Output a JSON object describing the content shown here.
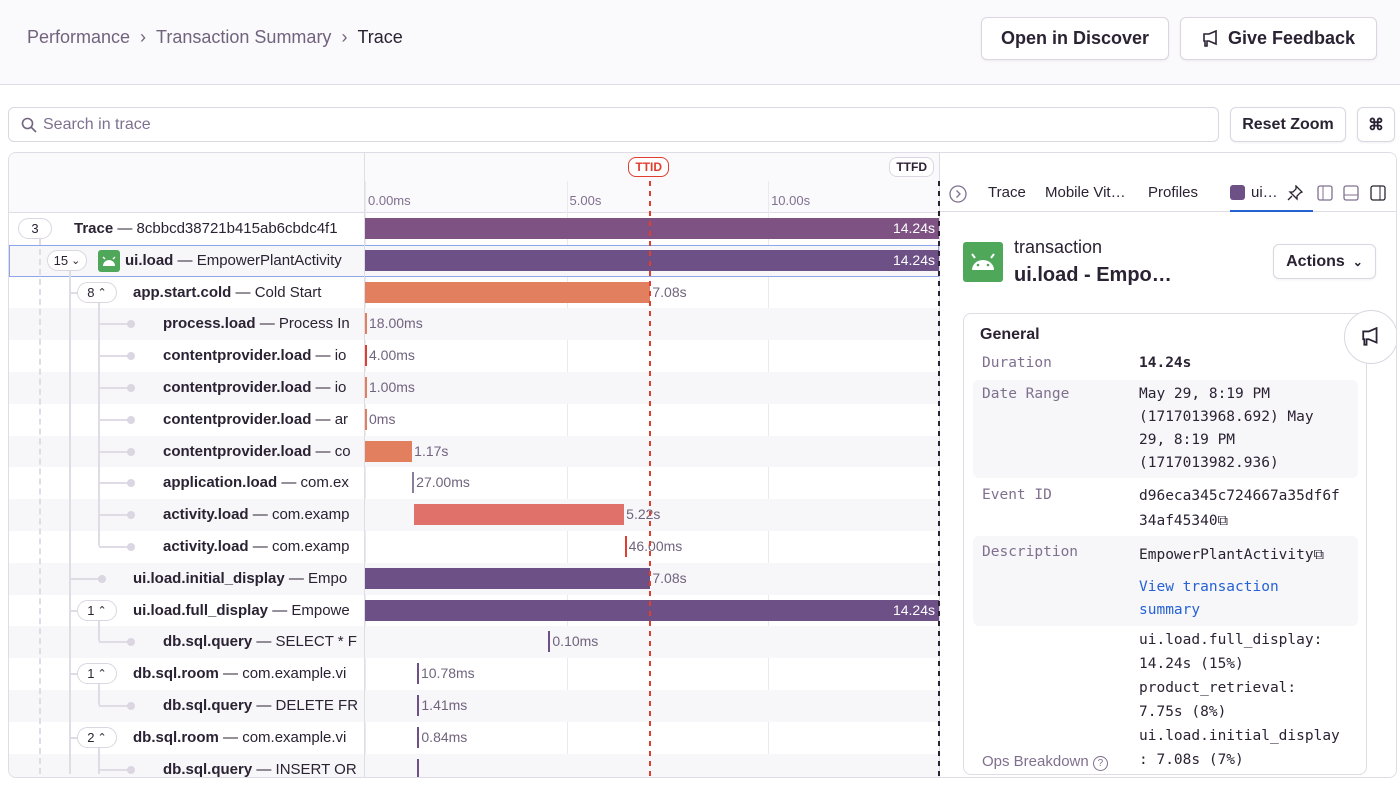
{
  "breadcrumbs": [
    "Performance",
    "Transaction Summary",
    "Trace"
  ],
  "header": {
    "open_discover": "Open in Discover",
    "give_feedback": "Give Feedback"
  },
  "search": {
    "placeholder": "Search in trace",
    "value": ""
  },
  "toolbar": {
    "reset_zoom": "Reset Zoom",
    "shortcut": "⌘"
  },
  "timeline": {
    "ticks": [
      "0.00ms",
      "5.00s",
      "10.00s"
    ],
    "tick_values_s": [
      0,
      5,
      10
    ],
    "total_s": 14.24,
    "markers": [
      {
        "label": "TTID",
        "at_s": 7.08,
        "color": "#e03e2f"
      },
      {
        "label": "TTFD",
        "at_s": 14.24,
        "color": "#2b2233"
      }
    ]
  },
  "colors": {
    "trace": "#7e5283",
    "ui_load": "#6c5086",
    "orange": "#e27f5f",
    "red_orange": "#e0706a",
    "purple_line": "#6c5086",
    "link": "#2562d4",
    "android": "#4fa85a"
  },
  "rows": [
    {
      "depth": 0,
      "badge": "3",
      "op": "Trace",
      "desc": "8cbbcd38721b415ab6cbdc4f1",
      "start": 0,
      "dur": 14.24,
      "duration": "14.24s",
      "color": "#7e5283"
    },
    {
      "depth": 1,
      "badge": "15",
      "chev": "down",
      "icon": "android",
      "op": "ui.load",
      "desc": "EmpowerPlantActivity",
      "start": 0,
      "dur": 14.24,
      "duration": "14.24s",
      "color": "#6c5086",
      "selected": true
    },
    {
      "depth": 2,
      "badge": "8",
      "chev": "up",
      "op": "app.start.cold",
      "desc": "Cold Start",
      "start": 0,
      "dur": 7.08,
      "duration": "7.08s",
      "color": "#e27f5f"
    },
    {
      "depth": 3,
      "op": "process.load",
      "desc": "Process In",
      "start": 0,
      "dur": 0.018,
      "duration": "18.00ms",
      "color": "#e27f5f"
    },
    {
      "depth": 3,
      "op": "contentprovider.load",
      "desc": "io",
      "start": 0,
      "dur": 0.004,
      "duration": "4.00ms",
      "color": "#e03e2f"
    },
    {
      "depth": 3,
      "op": "contentprovider.load",
      "desc": "io",
      "start": 0,
      "dur": 0.001,
      "duration": "1.00ms",
      "color": "#e27f5f"
    },
    {
      "depth": 3,
      "op": "contentprovider.load",
      "desc": "ar",
      "start": 0,
      "dur": 0,
      "duration": "0ms",
      "color": "#e27f5f"
    },
    {
      "depth": 3,
      "op": "contentprovider.load",
      "desc": "co",
      "start": 0,
      "dur": 1.17,
      "duration": "1.17s",
      "color": "#e27f5f"
    },
    {
      "depth": 3,
      "op": "application.load",
      "desc": "com.ex",
      "start": 1.17,
      "dur": 0.027,
      "duration": "27.00ms",
      "color": "#8c7d9a"
    },
    {
      "depth": 3,
      "op": "activity.load",
      "desc": "com.examp",
      "start": 1.21,
      "dur": 5.22,
      "duration": "5.22s",
      "color": "#e0706a"
    },
    {
      "depth": 3,
      "op": "activity.load",
      "desc": "com.examp",
      "start": 6.44,
      "dur": 0.046,
      "duration": "46.00ms",
      "color": "#e03e2f",
      "last": true
    },
    {
      "depth": 2,
      "op": "ui.load.initial_display",
      "desc": "Empo",
      "start": 0,
      "dur": 7.08,
      "duration": "7.08s",
      "color": "#6c5086"
    },
    {
      "depth": 2,
      "badge": "1",
      "chev": "up",
      "op": "ui.load.full_display",
      "desc": "Empowe",
      "start": 0,
      "dur": 14.24,
      "duration": "14.24s",
      "color": "#6c5086"
    },
    {
      "depth": 3,
      "op": "db.sql.query",
      "desc": "SELECT * F",
      "start": 4.55,
      "dur": 0.0001,
      "duration": "0.10ms",
      "color": "#6c5086",
      "last": true
    },
    {
      "depth": 2,
      "badge": "1",
      "chev": "up",
      "op": "db.sql.room",
      "desc": "com.example.vi",
      "start": 1.29,
      "dur": 0.01078,
      "duration": "10.78ms",
      "color": "#6c5086"
    },
    {
      "depth": 3,
      "op": "db.sql.query",
      "desc": "DELETE FR",
      "start": 1.3,
      "dur": 0.00141,
      "duration": "1.41ms",
      "color": "#6c5086",
      "last": true
    },
    {
      "depth": 2,
      "badge": "2",
      "chev": "up",
      "op": "db.sql.room",
      "desc": "com.example.vi",
      "start": 1.3,
      "dur": 0.00084,
      "duration": "0.84ms",
      "color": "#6c5086"
    },
    {
      "depth": 3,
      "op": "db.sql.query",
      "desc": "INSERT OR",
      "start": 1.3,
      "dur": 0.0007,
      "duration": "",
      "color": "#6c5086"
    }
  ],
  "panel": {
    "tabs": [
      "Trace",
      "Mobile Vit…",
      "Profiles",
      "ui…"
    ],
    "type": "transaction",
    "title": "ui.load - Empo…",
    "actions": "Actions",
    "section": "General",
    "fields": [
      {
        "key": "Duration",
        "value": "14.24s"
      },
      {
        "key": "Date Range",
        "value": "May 29, 8:19 PM (1717013968.692) May 29, 8:19 PM (1717013982.936)"
      },
      {
        "key": "Event ID",
        "value": "d96eca345c724667a35df6f34af45340"
      },
      {
        "key": "Description",
        "value": "EmpowerPlantActivity",
        "link": "View transaction summary"
      },
      {
        "key": "Ops Breakdown",
        "value": "ui.load.full_display: 14.24s (15%) product_retrieval: 7.75s (8%) ui.load.initial_display: 7.08s (7%)"
      }
    ]
  }
}
